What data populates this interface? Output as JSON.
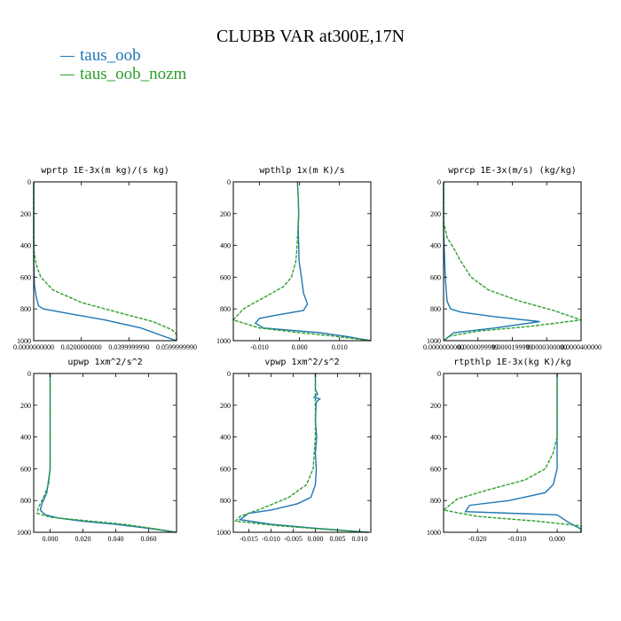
{
  "title": "CLUBB VAR at300E,17N",
  "legend": [
    {
      "label": "taus_oob",
      "color": "#1f77b4"
    },
    {
      "label": "taus_oob_nozm",
      "color": "#2ca02c"
    }
  ],
  "chart_data": [
    {
      "type": "line",
      "title": "wprtp  1E-3x(m kg)/(s kg)",
      "xlim": [
        0,
        0.06
      ],
      "ylim": [
        1000,
        0
      ],
      "xticks": [
        0,
        0.02,
        0.04,
        0.06
      ],
      "xtick_labels": [
        "0.0000000000",
        "0.0200000000",
        "0.0399999990",
        "0.0599999990"
      ],
      "yticks": [
        0,
        200,
        400,
        600,
        800,
        1000
      ],
      "series": [
        {
          "name": "taus_oob",
          "points": [
            [
              0,
              0
            ],
            [
              0,
              500
            ],
            [
              0.0003,
              650
            ],
            [
              0.001,
              720
            ],
            [
              0.002,
              780
            ],
            [
              0.004,
              800
            ],
            [
              0.015,
              830
            ],
            [
              0.03,
              870
            ],
            [
              0.045,
              920
            ],
            [
              0.056,
              980
            ],
            [
              0.06,
              1000
            ]
          ]
        },
        {
          "name": "taus_oob_nozm",
          "points": [
            [
              0,
              0
            ],
            [
              0,
              420
            ],
            [
              0.001,
              520
            ],
            [
              0.003,
              600
            ],
            [
              0.008,
              680
            ],
            [
              0.02,
              760
            ],
            [
              0.035,
              820
            ],
            [
              0.05,
              880
            ],
            [
              0.058,
              930
            ],
            [
              0.06,
              960
            ],
            [
              0.06,
              1000
            ]
          ]
        }
      ]
    },
    {
      "type": "line",
      "title": "wpthlp  1x(m K)/s",
      "xlim": [
        -0.0165,
        0.0178
      ],
      "ylim": [
        1000,
        0
      ],
      "xticks": [
        -0.01,
        0,
        0.01
      ],
      "xtick_labels": [
        "-0.010",
        "0.000",
        "0.010"
      ],
      "yticks": [
        0,
        200,
        400,
        600,
        800,
        1000
      ],
      "series": [
        {
          "name": "taus_oob",
          "points": [
            [
              -0.0005,
              0
            ],
            [
              -0.0003,
              100
            ],
            [
              -0.0002,
              200
            ],
            [
              -0.0003,
              300
            ],
            [
              -0.0002,
              400
            ],
            [
              -0.0001,
              500
            ],
            [
              0.0005,
              600
            ],
            [
              0.001,
              700
            ],
            [
              0.002,
              770
            ],
            [
              0.001,
              810
            ],
            [
              -0.006,
              840
            ],
            [
              -0.01,
              860
            ],
            [
              -0.011,
              890
            ],
            [
              -0.009,
              920
            ],
            [
              0.005,
              950
            ],
            [
              0.012,
              975
            ],
            [
              0.0178,
              1000
            ]
          ]
        },
        {
          "name": "taus_oob_nozm",
          "points": [
            [
              -0.0005,
              0
            ],
            [
              -0.0003,
              100
            ],
            [
              -0.0002,
              200
            ],
            [
              -0.0004,
              300
            ],
            [
              -0.0006,
              400
            ],
            [
              -0.0009,
              500
            ],
            [
              -0.002,
              600
            ],
            [
              -0.004,
              660
            ],
            [
              -0.009,
              730
            ],
            [
              -0.014,
              800
            ],
            [
              -0.0165,
              870
            ],
            [
              -0.01,
              920
            ],
            [
              0,
              950
            ],
            [
              0.008,
              970
            ],
            [
              0.0178,
              1000
            ]
          ]
        }
      ]
    },
    {
      "type": "line",
      "title": "wprcp  1E-3x(m/s) (kg/kg)",
      "xlim": [
        0,
        4e-05
      ],
      "ylim": [
        1000,
        0
      ],
      "xticks": [
        0,
        1e-05,
        2e-05,
        3e-05,
        4e-05
      ],
      "xtick_labels": [
        "0.0000000000",
        "0.0000099999",
        "0.0000199999",
        "0.0000300000",
        "0.0000400000"
      ],
      "yticks": [
        0,
        200,
        400,
        600,
        800,
        1000
      ],
      "series": [
        {
          "name": "taus_oob",
          "points": [
            [
              0,
              0
            ],
            [
              0,
              300
            ],
            [
              5e-07,
              600
            ],
            [
              1e-06,
              750
            ],
            [
              2e-06,
              800
            ],
            [
              5e-06,
              820
            ],
            [
              1.5e-05,
              850
            ],
            [
              2.8e-05,
              880
            ],
            [
              1.5e-05,
              920
            ],
            [
              3e-06,
              950
            ],
            [
              0,
              1000
            ]
          ]
        },
        {
          "name": "taus_oob_nozm",
          "points": [
            [
              0,
              0
            ],
            [
              0,
              250
            ],
            [
              1e-06,
              350
            ],
            [
              3e-06,
              420
            ],
            [
              5e-06,
              500
            ],
            [
              8e-06,
              600
            ],
            [
              1.3e-05,
              680
            ],
            [
              2.2e-05,
              750
            ],
            [
              3.2e-05,
              810
            ],
            [
              4e-05,
              870
            ],
            [
              2.5e-05,
              910
            ],
            [
              1e-05,
              940
            ],
            [
              2e-06,
              970
            ],
            [
              0,
              1000
            ]
          ]
        }
      ]
    },
    {
      "type": "line",
      "title": "upwp  1xm^2/s^2",
      "xlim": [
        -0.01,
        0.077
      ],
      "ylim": [
        1000,
        0
      ],
      "xticks": [
        0,
        0.02,
        0.04,
        0.06
      ],
      "xtick_labels": [
        "0.000",
        "0.020",
        "0.040",
        "0.060"
      ],
      "yticks": [
        0,
        200,
        400,
        600,
        800,
        1000
      ],
      "series": [
        {
          "name": "taus_oob",
          "points": [
            [
              0,
              0
            ],
            [
              0,
              400
            ],
            [
              0,
              600
            ],
            [
              -0.002,
              750
            ],
            [
              -0.005,
              820
            ],
            [
              -0.006,
              860
            ],
            [
              -0.003,
              890
            ],
            [
              0.005,
              910
            ],
            [
              0.02,
              930
            ],
            [
              0.04,
              950
            ],
            [
              0.06,
              975
            ],
            [
              0.077,
              1000
            ]
          ]
        },
        {
          "name": "taus_oob_nozm",
          "points": [
            [
              0,
              0
            ],
            [
              0,
              400
            ],
            [
              0,
              600
            ],
            [
              -0.001,
              700
            ],
            [
              -0.004,
              780
            ],
            [
              -0.007,
              840
            ],
            [
              -0.008,
              880
            ],
            [
              0,
              905
            ],
            [
              0.02,
              925
            ],
            [
              0.045,
              950
            ],
            [
              0.065,
              980
            ],
            [
              0.077,
              1000
            ]
          ]
        }
      ]
    },
    {
      "type": "line",
      "title": "vpwp  1xm^2/s^2",
      "xlim": [
        -0.0185,
        0.0125
      ],
      "ylim": [
        1000,
        0
      ],
      "xticks": [
        -0.015,
        -0.01,
        -0.005,
        0,
        0.005,
        0.01
      ],
      "xtick_labels": [
        "-0.015",
        "-0.010",
        "-0.005",
        "0.000",
        "0.005",
        "0.010"
      ],
      "yticks": [
        0,
        200,
        400,
        600,
        800,
        1000
      ],
      "series": [
        {
          "name": "taus_oob",
          "points": [
            [
              0,
              0
            ],
            [
              0,
              100
            ],
            [
              0.0005,
              130
            ],
            [
              -0.0003,
              150
            ],
            [
              0.001,
              160
            ],
            [
              0.0002,
              180
            ],
            [
              0,
              300
            ],
            [
              0.0003,
              400
            ],
            [
              0,
              500
            ],
            [
              0.0002,
              600
            ],
            [
              0,
              700
            ],
            [
              -0.001,
              780
            ],
            [
              -0.004,
              820
            ],
            [
              -0.01,
              860
            ],
            [
              -0.015,
              880
            ],
            [
              -0.017,
              920
            ],
            [
              -0.01,
              950
            ],
            [
              0,
              975
            ],
            [
              0.012,
              1000
            ]
          ]
        },
        {
          "name": "taus_oob_nozm",
          "points": [
            [
              0,
              0
            ],
            [
              0,
              200
            ],
            [
              0,
              400
            ],
            [
              -0.0005,
              600
            ],
            [
              -0.002,
              700
            ],
            [
              -0.006,
              780
            ],
            [
              -0.012,
              850
            ],
            [
              -0.017,
              900
            ],
            [
              -0.018,
              930
            ],
            [
              -0.008,
              960
            ],
            [
              0.004,
              985
            ],
            [
              0.012,
              1000
            ]
          ]
        }
      ]
    },
    {
      "type": "line",
      "title": "rtpthlp  1E-3x(kg K)/kg",
      "xlim": [
        -0.0285,
        0.006
      ],
      "ylim": [
        1000,
        0
      ],
      "xticks": [
        -0.02,
        -0.01,
        0
      ],
      "xtick_labels": [
        "-0.020",
        "-0.010",
        "0.000"
      ],
      "yticks": [
        0,
        200,
        400,
        600,
        800,
        1000
      ],
      "series": [
        {
          "name": "taus_oob",
          "points": [
            [
              0,
              0
            ],
            [
              0,
              300
            ],
            [
              0,
              400
            ],
            [
              0,
              500
            ],
            [
              0,
              600
            ],
            [
              -0.001,
              700
            ],
            [
              -0.003,
              750
            ],
            [
              -0.012,
              800
            ],
            [
              -0.022,
              830
            ],
            [
              -0.023,
              870
            ],
            [
              -0.012,
              880
            ],
            [
              0,
              890
            ],
            [
              0.003,
              940
            ],
            [
              0.006,
              980
            ],
            [
              0.006,
              1000
            ]
          ]
        },
        {
          "name": "taus_oob_nozm",
          "points": [
            [
              0,
              0
            ],
            [
              0,
              300
            ],
            [
              0,
              400
            ],
            [
              -0.001,
              500
            ],
            [
              -0.003,
              600
            ],
            [
              -0.008,
              670
            ],
            [
              -0.017,
              730
            ],
            [
              -0.025,
              790
            ],
            [
              -0.0285,
              860
            ],
            [
              -0.02,
              900
            ],
            [
              -0.005,
              930
            ],
            [
              0.006,
              960
            ],
            [
              0.006,
              1000
            ]
          ]
        }
      ]
    }
  ]
}
